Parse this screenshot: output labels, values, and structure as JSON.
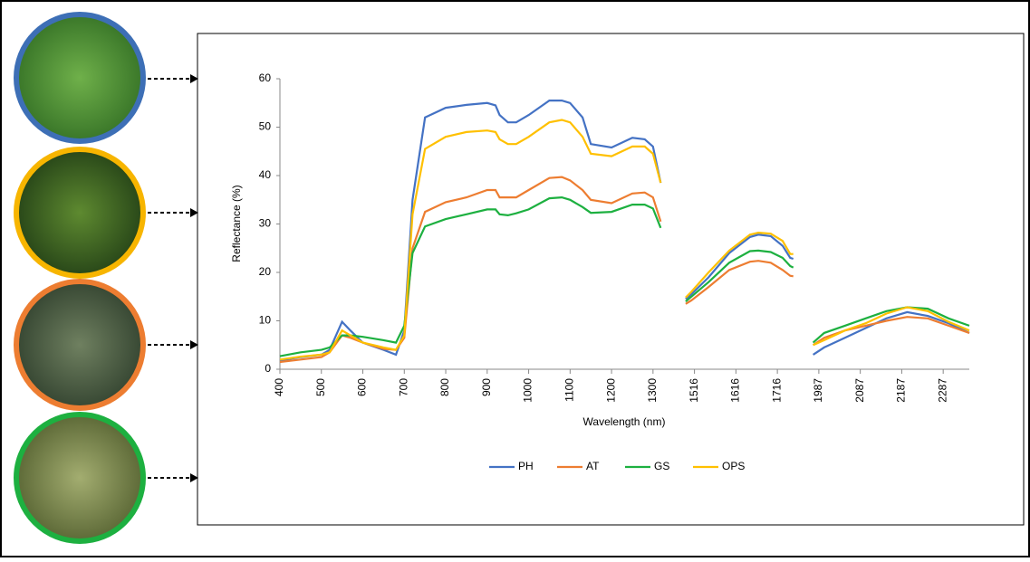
{
  "chart_data": {
    "type": "line",
    "x_label": "Wavelength (nm)",
    "y_label": "Reflectance (%)",
    "x": [
      400,
      450,
      500,
      520,
      550,
      570,
      600,
      650,
      680,
      700,
      720,
      750,
      800,
      850,
      900,
      920,
      930,
      950,
      970,
      1000,
      1050,
      1080,
      1100,
      1130,
      1150,
      1200,
      1250,
      1280,
      1300,
      1340,
      1400,
      1470,
      1500,
      1550,
      1600,
      1650,
      1670,
      1700,
      1750,
      1800,
      1820,
      1900,
      1950,
      2000,
      2050,
      2100,
      2150,
      2200,
      2250,
      2300,
      2350
    ],
    "series": [
      {
        "name": "PH",
        "color": "#4472c4",
        "values": [
          1.8,
          2.5,
          3,
          4,
          9.8,
          8,
          5.5,
          4,
          3,
          8,
          35,
          52,
          54,
          54.6,
          55,
          54.5,
          52.5,
          51,
          51,
          52.5,
          55.5,
          55.5,
          55,
          52,
          46.5,
          45.8,
          47.8,
          47.5,
          46,
          38.5,
          null,
          14.5,
          15.5,
          19,
          24,
          27.3,
          27.8,
          27.5,
          25.5,
          23,
          22.8,
          null,
          3,
          4.5,
          6.5,
          8.5,
          10.5,
          11.8,
          11,
          9.5,
          7.5
        ]
      },
      {
        "name": "AT",
        "color": "#ed7d31",
        "values": [
          1.5,
          2,
          2.5,
          3.5,
          7,
          6.5,
          5.5,
          4.2,
          4,
          6.5,
          25,
          32.5,
          34.5,
          35.5,
          37,
          37,
          35.5,
          35.5,
          35.5,
          37,
          39.5,
          39.7,
          39,
          37,
          35,
          34.3,
          36.3,
          36.5,
          35.5,
          30.5,
          null,
          13.5,
          14.2,
          17,
          20.5,
          22.2,
          22.4,
          22,
          20.5,
          19.3,
          19.2,
          null,
          5,
          6.5,
          8,
          9,
          10,
          10.8,
          10.5,
          9,
          7.5
        ]
      },
      {
        "name": "GS",
        "color": "#1db040",
        "values": [
          2.7,
          3.5,
          4,
          4.5,
          7,
          7,
          6.7,
          6,
          5.5,
          9,
          24,
          29.5,
          31,
          32,
          33,
          33,
          32,
          31.8,
          32.2,
          33,
          35.3,
          35.5,
          35,
          33.5,
          32.3,
          32.5,
          34,
          34,
          33.2,
          29.2,
          null,
          14,
          15,
          18,
          22,
          24.4,
          24.5,
          24.2,
          23,
          21.3,
          21,
          null,
          5.5,
          7.5,
          9,
          10.5,
          12,
          12.8,
          12.5,
          10.5,
          9
        ]
      },
      {
        "name": "OPS",
        "color": "#ffc000",
        "values": [
          2,
          2.6,
          3,
          3.5,
          8,
          7,
          5.5,
          4.5,
          4,
          7,
          32,
          45.5,
          48,
          49,
          49.3,
          49,
          47.5,
          46.5,
          46.5,
          48,
          51,
          51.5,
          51,
          48,
          44.5,
          44,
          46,
          46,
          44.5,
          38.5,
          null,
          14.8,
          16,
          20,
          24.5,
          27.8,
          28.2,
          28,
          26.5,
          23.8,
          23.8,
          null,
          5,
          6,
          8,
          9.5,
          11.5,
          12.8,
          12,
          9.8,
          8
        ]
      }
    ],
    "xlim": [
      400,
      2350
    ],
    "xticks": [
      400,
      500,
      600,
      700,
      800,
      900,
      1000,
      1100,
      1200,
      1300,
      1516,
      1616,
      1716,
      1987,
      2087,
      2187,
      2287
    ],
    "ylim": [
      0,
      60
    ],
    "yticks": [
      0,
      10,
      20,
      30,
      40,
      50,
      60
    ],
    "grid": false,
    "legend": "bottom"
  }
}
